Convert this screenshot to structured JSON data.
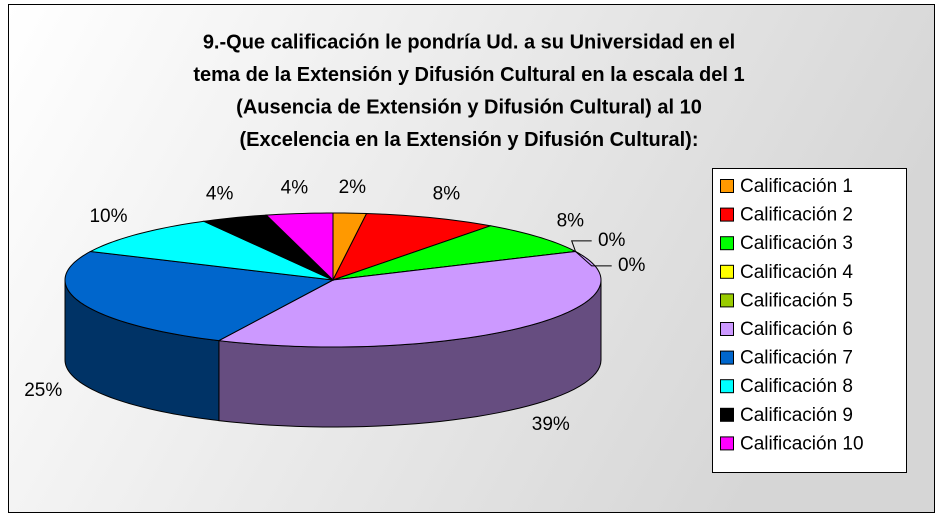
{
  "chart_data": {
    "type": "pie3d",
    "title": [
      "9.-Que calificación le pondría Ud. a su Universidad en el",
      "tema de la Extensión y Difusión Cultural en la escala del 1",
      "(Ausencia de Extensión y Difusión Cultural) al 10",
      "(Excelencia en la Extensión y Difusión Cultural):"
    ],
    "categories": [
      "Calificación 1",
      "Calificación 2",
      "Calificación 3",
      "Calificación 4",
      "Calificación 5",
      "Calificación 6",
      "Calificación 7",
      "Calificación 8",
      "Calificación 9",
      "Calificación 10"
    ],
    "values": [
      2,
      8,
      8,
      0,
      0,
      39,
      25,
      10,
      4,
      4
    ],
    "value_labels": [
      "2%",
      "8%",
      "8%",
      "0%",
      "0%",
      "39%",
      "25%",
      "10%",
      "4%",
      "4%"
    ],
    "colors": [
      "#FF9900",
      "#FF0000",
      "#00FF00",
      "#FFFF00",
      "#99CC00",
      "#CC99FF",
      "#0066CC",
      "#00FFFF",
      "#000000",
      "#FF00FF"
    ],
    "legend": "right"
  }
}
